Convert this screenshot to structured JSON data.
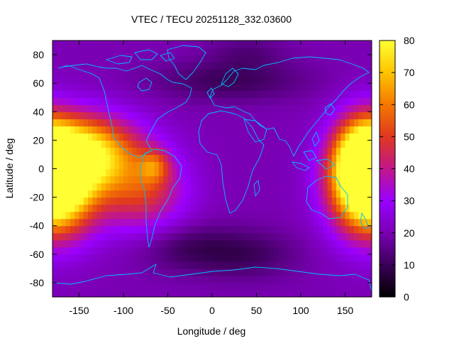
{
  "chart_data": {
    "type": "heatmap",
    "title": "VTEC / TECU 20251128_332.03600",
    "xlabel": "Longitude / deg",
    "ylabel": "Latitude / deg",
    "xlim": [
      -180,
      180
    ],
    "ylim": [
      -90,
      90
    ],
    "xticks": [
      -150,
      -100,
      -50,
      0,
      50,
      100,
      150
    ],
    "yticks": [
      -80,
      -60,
      -40,
      -20,
      0,
      20,
      40,
      60,
      80
    ],
    "colorbar": {
      "range": [
        0,
        80
      ],
      "ticks": [
        0,
        10,
        20,
        30,
        40,
        50,
        60,
        70,
        80
      ],
      "palette": [
        "#000000",
        "#3b0058",
        "#7a00b4",
        "#9a00ff",
        "#c1178a",
        "#e0381f",
        "#f47800",
        "#ffc400",
        "#ffff33"
      ]
    },
    "field": {
      "lon_step": 5,
      "lat_step": 5,
      "background_tec": 20,
      "enhancements": [
        {
          "lon": -178,
          "lat": -12,
          "tec": 75,
          "lon_sigma": 32,
          "lat_sigma": 24
        },
        {
          "lon": -140,
          "lat": 12,
          "tec": 50,
          "lon_sigma": 40,
          "lat_sigma": 18
        },
        {
          "lon": 170,
          "lat": 5,
          "tec": 48,
          "lon_sigma": 22,
          "lat_sigma": 22
        },
        {
          "lon": -80,
          "lat": -15,
          "tec": 28,
          "lon_sigma": 35,
          "lat_sigma": 20
        },
        {
          "lon": -65,
          "lat": 2,
          "tec": 20,
          "lon_sigma": 12,
          "lat_sigma": 8
        }
      ],
      "depletions": [
        {
          "lon": -30,
          "lat": -55,
          "tec": -9,
          "lon_sigma": 40,
          "lat_sigma": 12
        },
        {
          "lon": 40,
          "lat": -60,
          "tec": -9,
          "lon_sigma": 40,
          "lat_sigma": 12
        },
        {
          "lon": 20,
          "lat": 62,
          "tec": -10,
          "lon_sigma": 60,
          "lat_sigma": 10
        },
        {
          "lon": 40,
          "lat": 82,
          "tec": -6,
          "lon_sigma": 30,
          "lat_sigma": 8
        }
      ]
    },
    "overlay": "world coastlines"
  }
}
